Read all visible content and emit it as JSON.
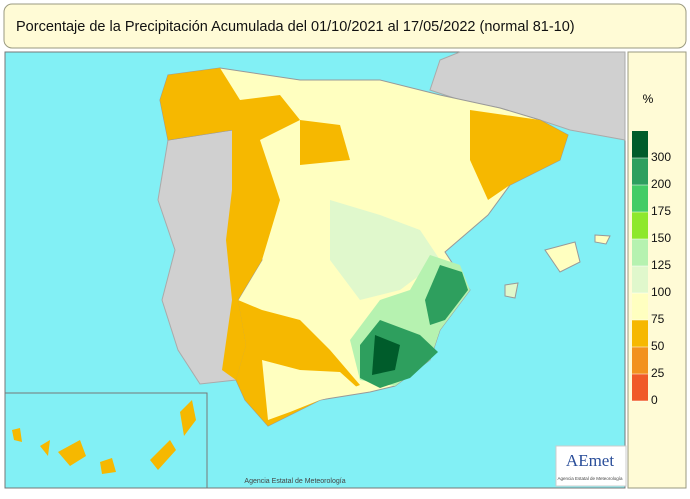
{
  "header": {
    "title": "Porcentaje de la Precipitación Acumulada del 01/10/2021 al 17/05/2022 (normal 81-10)"
  },
  "legend": {
    "unit": "%",
    "ticks": [
      300,
      200,
      175,
      150,
      125,
      100,
      75,
      50,
      25,
      0
    ],
    "colors": [
      "#005c2b",
      "#2e9f5e",
      "#44cc66",
      "#8ee82c",
      "#b6f2b0",
      "#e0f8cc",
      "#ffffc0",
      "#f6b800",
      "#f2921e",
      "#f05a28"
    ]
  },
  "footer": {
    "credit": "Agencia Estatal de Meteorología",
    "logo": "AEmet",
    "logo_caption": "Agencia Estatal de Meteorología"
  }
}
